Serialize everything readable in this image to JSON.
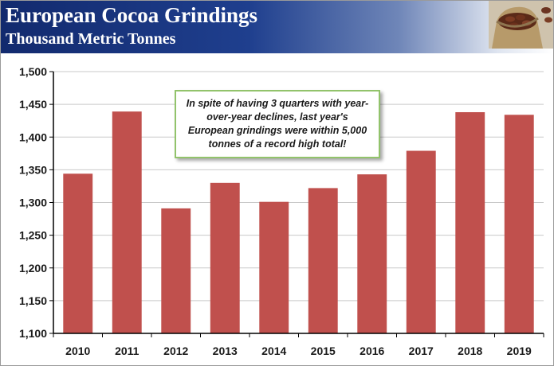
{
  "header": {
    "title": "European Cocoa Grindings",
    "subtitle": "Thousand Metric Tonnes"
  },
  "callout": {
    "text": "In spite of having 3 quarters with year-over-year declines, last year's European grindings were within 5,000 tonnes of a record high total!"
  },
  "colors": {
    "header_dark": "#122a6e",
    "bar_fill": "#c0504d",
    "callout_border": "#92c36b"
  },
  "chart_data": {
    "type": "bar",
    "title": "European Cocoa Grindings",
    "subtitle": "Thousand Metric Tonnes",
    "xlabel": "",
    "ylabel": "",
    "categories": [
      "2010",
      "2011",
      "2012",
      "2013",
      "2014",
      "2015",
      "2016",
      "2017",
      "2018",
      "2019"
    ],
    "values": [
      1344,
      1439,
      1291,
      1330,
      1301,
      1322,
      1343,
      1379,
      1438,
      1434
    ],
    "ylim": [
      1100,
      1500
    ],
    "yticks": [
      1100,
      1150,
      1200,
      1250,
      1300,
      1350,
      1400,
      1450,
      1500
    ],
    "ytick_labels": [
      "1,100",
      "1,150",
      "1,200",
      "1,250",
      "1,300",
      "1,350",
      "1,400",
      "1,450",
      "1,500"
    ],
    "grid": true,
    "legend": "none"
  }
}
